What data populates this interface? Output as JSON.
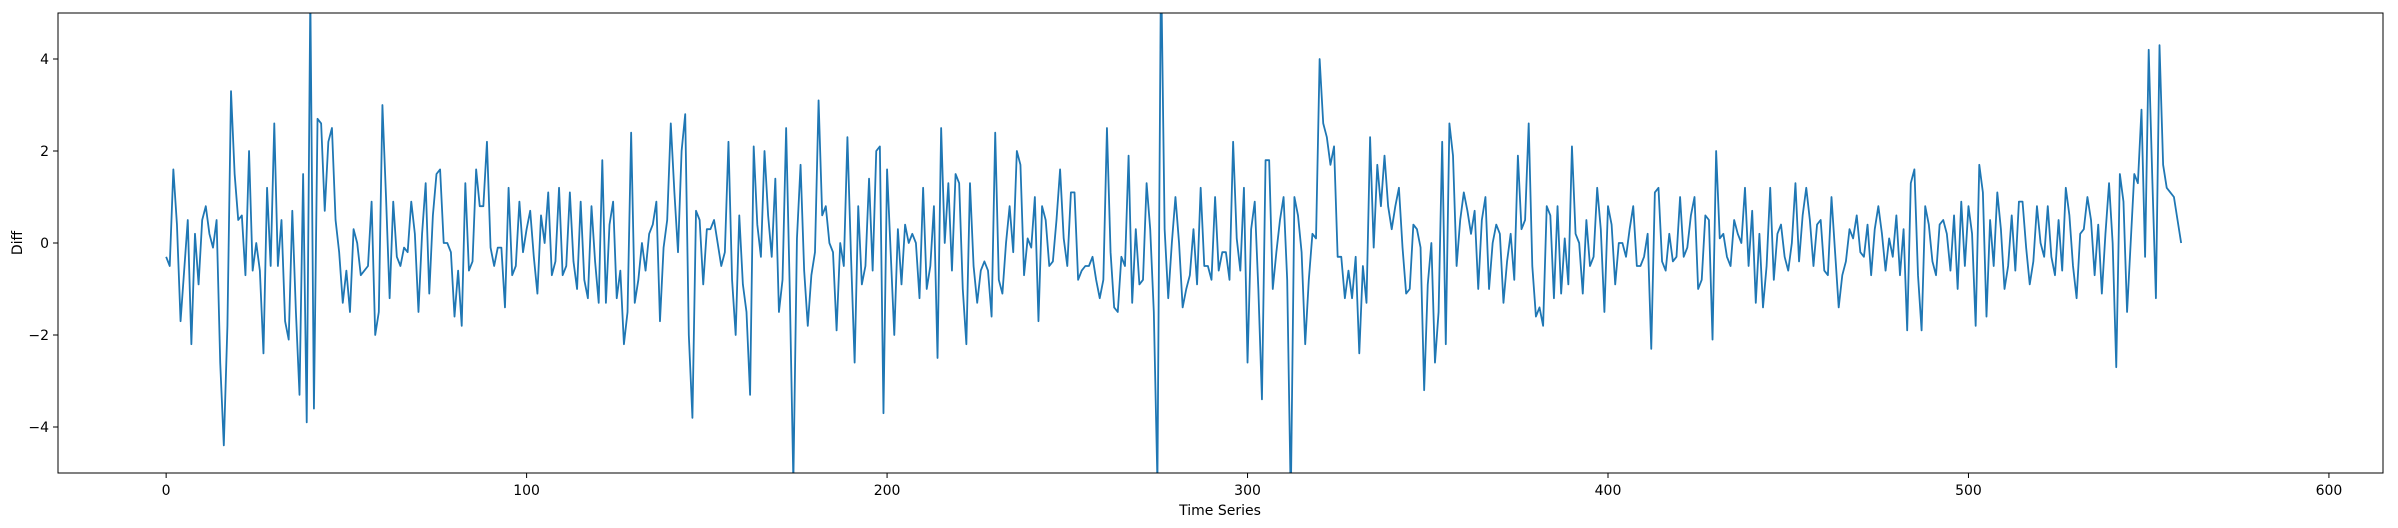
{
  "chart_data": {
    "type": "line",
    "title": "",
    "xlabel": "Time Series",
    "ylabel": "Diff",
    "xlim": [
      -30,
      615
    ],
    "ylim": [
      -5,
      5
    ],
    "xticks": [
      0,
      100,
      200,
      300,
      400,
      500,
      600
    ],
    "yticks": [
      -4,
      -2,
      0,
      2,
      4
    ],
    "xtick_labels": [
      "0",
      "100",
      "200",
      "300",
      "400",
      "500",
      "600"
    ],
    "ytick_labels": [
      "−4",
      "−2",
      "0",
      "2",
      "4"
    ],
    "grid": false,
    "legend": "none",
    "series": [
      {
        "color": "#1f77b4",
        "x_start": 0,
        "x_step": 1,
        "values": [
          -0.3,
          -0.5,
          1.6,
          0.4,
          -1.7,
          -0.6,
          0.5,
          -2.2,
          0.2,
          -0.9,
          0.5,
          0.8,
          0.2,
          -0.1,
          0.5,
          -2.6,
          -4.4,
          -1.8,
          3.3,
          1.5,
          0.5,
          0.6,
          -0.7,
          2.0,
          -0.6,
          0.0,
          -0.6,
          -2.4,
          1.2,
          -0.5,
          2.6,
          -0.5,
          0.5,
          -1.7,
          -2.1,
          0.7,
          -1.5,
          -3.3,
          1.5,
          -3.9,
          5.4,
          -3.6,
          2.7,
          2.6,
          0.7,
          2.2,
          2.5,
          0.5,
          -0.2,
          -1.3,
          -0.6,
          -1.5,
          0.3,
          0.0,
          -0.7,
          -0.6,
          -0.5,
          0.9,
          -2.0,
          -1.5,
          3.0,
          1.0,
          -1.2,
          0.9,
          -0.3,
          -0.5,
          -0.1,
          -0.2,
          0.9,
          0.2,
          -1.5,
          0.2,
          1.3,
          -1.1,
          0.6,
          1.5,
          1.6,
          0.0,
          0.0,
          -0.2,
          -1.6,
          -0.6,
          -1.8,
          1.3,
          -0.6,
          -0.4,
          1.6,
          0.8,
          0.8,
          2.2,
          -0.1,
          -0.5,
          -0.1,
          -0.1,
          -1.4,
          1.2,
          -0.7,
          -0.5,
          0.9,
          -0.2,
          0.3,
          0.7,
          -0.3,
          -1.1,
          0.6,
          0.0,
          1.1,
          -0.7,
          -0.4,
          1.2,
          -0.7,
          -0.5,
          1.1,
          -0.4,
          -1.0,
          0.9,
          -0.8,
          -1.2,
          0.8,
          -0.4,
          -1.3,
          1.8,
          -1.3,
          0.4,
          0.9,
          -1.2,
          -0.6,
          -2.2,
          -1.5,
          2.4,
          -1.3,
          -0.8,
          0.0,
          -0.6,
          0.2,
          0.4,
          0.9,
          -1.7,
          -0.1,
          0.5,
          2.6,
          1.1,
          -0.2,
          2.0,
          2.8,
          -2.0,
          -3.8,
          0.7,
          0.5,
          -0.9,
          0.3,
          0.3,
          0.5,
          0.0,
          -0.5,
          -0.2,
          2.2,
          -0.8,
          -2.0,
          0.6,
          -0.9,
          -1.5,
          -3.3,
          2.1,
          0.4,
          -0.3,
          2.0,
          0.6,
          -0.3,
          1.4,
          -1.5,
          -0.8,
          2.5,
          -1.0,
          -5.2,
          0.1,
          1.7,
          -0.6,
          -1.8,
          -0.7,
          -0.2,
          3.1,
          0.6,
          0.8,
          0.0,
          -0.2,
          -1.9,
          0.0,
          -0.5,
          2.3,
          -0.3,
          -2.6,
          0.8,
          -0.9,
          -0.5,
          1.4,
          -0.6,
          2.0,
          2.1,
          -3.7,
          1.6,
          -0.2,
          -2.0,
          0.3,
          -0.9,
          0.4,
          0.0,
          0.2,
          0.0,
          -1.2,
          1.2,
          -1.0,
          -0.5,
          0.8,
          -2.5,
          2.5,
          0.0,
          1.3,
          -0.6,
          1.5,
          1.3,
          -1.0,
          -2.2,
          1.3,
          -0.5,
          -1.3,
          -0.6,
          -0.4,
          -0.6,
          -1.6,
          2.4,
          -0.8,
          -1.1,
          0.0,
          0.8,
          -0.2,
          2.0,
          1.7,
          -0.7,
          0.1,
          -0.1,
          1.0,
          -1.7,
          0.8,
          0.5,
          -0.5,
          -0.4,
          0.5,
          1.6,
          0.1,
          -0.5,
          1.1,
          1.1,
          -0.8,
          -0.6,
          -0.5,
          -0.5,
          -0.3,
          -0.8,
          -1.2,
          -0.8,
          2.5,
          -0.2,
          -1.4,
          -1.5,
          -0.3,
          -0.5,
          1.9,
          -1.3,
          0.3,
          -0.9,
          -0.8,
          1.3,
          0.3,
          -1.5,
          -5.2,
          6.2,
          0.3,
          -1.2,
          0.0,
          1.0,
          0.0,
          -1.4,
          -1.0,
          -0.7,
          0.3,
          -0.9,
          1.2,
          -0.5,
          -0.5,
          -0.8,
          1.0,
          -0.6,
          -0.2,
          -0.2,
          -0.8,
          2.2,
          0.1,
          -0.6,
          1.2,
          -2.6,
          0.3,
          0.9,
          -1.0,
          -3.4,
          1.8,
          1.8,
          -1.0,
          -0.2,
          0.5,
          1.0,
          -0.8,
          -5.6,
          1.0,
          0.6,
          -0.2,
          -2.2,
          -0.8,
          0.2,
          0.1,
          4.0,
          2.6,
          2.3,
          1.7,
          2.1,
          -0.3,
          -0.3,
          -1.2,
          -0.6,
          -1.2,
          -0.3,
          -2.4,
          -0.5,
          -1.3,
          2.3,
          -0.1,
          1.7,
          0.8,
          1.9,
          0.8,
          0.3,
          0.8,
          1.2,
          -0.1,
          -1.1,
          -1.0,
          0.4,
          0.3,
          -0.1,
          -3.2,
          -0.9,
          0.0,
          -2.6,
          -1.5,
          2.2,
          -2.2,
          2.6,
          1.9,
          -0.5,
          0.5,
          1.1,
          0.7,
          0.2,
          0.7,
          -1.0,
          0.5,
          1.0,
          -1.0,
          0.0,
          0.4,
          0.2,
          -1.3,
          -0.4,
          0.2,
          -0.8,
          1.9,
          0.3,
          0.5,
          2.6,
          -0.5,
          -1.6,
          -1.4,
          -1.8,
          0.8,
          0.6,
          -1.2,
          0.8,
          -1.1,
          0.1,
          -0.9,
          2.1,
          0.2,
          0.0,
          -1.1,
          0.5,
          -0.5,
          -0.3,
          1.2,
          0.3,
          -1.5,
          0.8,
          0.4,
          -0.9,
          0.0,
          0.0,
          -0.3,
          0.3,
          0.8,
          -0.5,
          -0.5,
          -0.3,
          0.2,
          -2.3,
          1.1,
          1.2,
          -0.4,
          -0.6,
          0.2,
          -0.4,
          -0.3,
          1.0,
          -0.3,
          -0.1,
          0.6,
          1.0,
          -1.0,
          -0.8,
          0.6,
          0.5,
          -2.1,
          2.0,
          0.1,
          0.2,
          -0.3,
          -0.5,
          0.5,
          0.2,
          0.0,
          1.2,
          -0.5,
          0.7,
          -1.3,
          0.2,
          -1.4,
          -0.5,
          1.2,
          -0.8,
          0.2,
          0.4,
          -0.3,
          -0.6,
          0.0,
          1.3,
          -0.4,
          0.6,
          1.2,
          0.5,
          -0.5,
          0.4,
          0.5,
          -0.6,
          -0.7,
          1.0,
          -0.2,
          -1.4,
          -0.7,
          -0.4,
          0.3,
          0.1,
          0.6,
          -0.2,
          -0.3,
          0.4,
          -0.7,
          0.3,
          0.8,
          0.2,
          -0.6,
          0.1,
          -0.3,
          0.6,
          -0.7,
          0.3,
          -1.9,
          1.3,
          1.6,
          -0.7,
          -1.9,
          0.8,
          0.4,
          -0.4,
          -0.7,
          0.4,
          0.5,
          0.2,
          -0.6,
          0.6,
          -1.0,
          0.9,
          -0.5,
          0.8,
          0.2,
          -1.8,
          1.7,
          1.1,
          -1.6,
          0.5,
          -0.5,
          1.1,
          0.3,
          -1.0,
          -0.5,
          0.6,
          -0.6,
          0.9,
          0.9,
          -0.1,
          -0.9,
          -0.4,
          0.8,
          0.0,
          -0.3,
          0.8,
          -0.3,
          -0.7,
          0.5,
          -0.6,
          1.2,
          0.6,
          -0.5,
          -1.2,
          0.2,
          0.3,
          1.0,
          0.5,
          -0.7,
          0.4,
          -1.1,
          0.2,
          1.3,
          0.0,
          -2.7,
          1.5,
          0.9,
          -1.5,
          0.0,
          1.5,
          1.3,
          2.9,
          -0.3,
          4.2,
          1.4,
          -1.2,
          4.3,
          1.7,
          1.2,
          1.1,
          1.0,
          0.5,
          0.0
        ]
      }
    ]
  }
}
